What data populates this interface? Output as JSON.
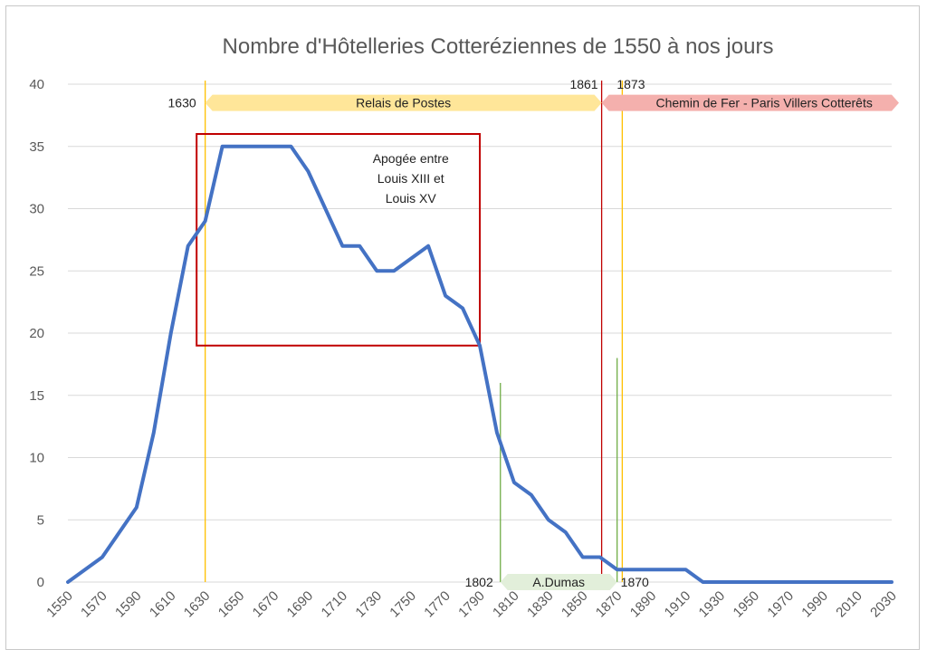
{
  "chart_data": {
    "type": "line",
    "title": "Nombre d'Hôtelleries Cotteréziennes de 1550 à nos jours",
    "xlabel": "",
    "ylabel": "",
    "xlim": [
      1550,
      2030
    ],
    "ylim": [
      0,
      40
    ],
    "grid": true,
    "x_ticks": [
      "1550",
      "1570",
      "1590",
      "1610",
      "1630",
      "1650",
      "1670",
      "1690",
      "1710",
      "1730",
      "1750",
      "1770",
      "1790",
      "1810",
      "1830",
      "1850",
      "1870",
      "1890",
      "1910",
      "1930",
      "1950",
      "1970",
      "1990",
      "2010",
      "2030"
    ],
    "y_ticks": [
      "0",
      "5",
      "10",
      "15",
      "20",
      "25",
      "30",
      "35",
      "40"
    ],
    "series": [
      {
        "color": "#4472C4",
        "x": [
          1550,
          1560,
          1570,
          1580,
          1590,
          1600,
          1610,
          1620,
          1630,
          1640,
          1650,
          1660,
          1670,
          1680,
          1690,
          1700,
          1710,
          1720,
          1730,
          1740,
          1750,
          1760,
          1770,
          1780,
          1790,
          1800,
          1810,
          1820,
          1830,
          1840,
          1850,
          1860,
          1870,
          1880,
          1890,
          1900,
          1910,
          1920,
          1930,
          1940,
          1950,
          1960,
          1970,
          1980,
          1990,
          2000,
          2010,
          2020,
          2030
        ],
        "values": [
          0,
          1,
          2,
          4,
          6,
          12,
          20,
          27,
          29,
          35,
          35,
          35,
          35,
          35,
          33,
          30,
          27,
          27,
          25,
          25,
          26,
          27,
          23,
          22,
          19,
          12,
          8,
          7,
          5,
          4,
          2,
          2,
          1,
          1,
          1,
          1,
          1,
          0,
          0,
          0,
          0,
          0,
          0,
          0,
          0,
          0,
          0,
          0,
          0
        ]
      }
    ],
    "annotations": {
      "relais": {
        "label": "Relais de Postes",
        "start_label": "1630",
        "from": 1630,
        "to": 1861,
        "color": "#FFE699"
      },
      "chemin": {
        "label": "Chemin de Fer - Paris Villers Cotterêts",
        "label_1861": "1861",
        "label_1873": "1873",
        "from": 1861,
        "to": 2030,
        "color": "#F4B0AD"
      },
      "dumas": {
        "label": "A.Dumas",
        "label_start": "1802",
        "label_end": "1870",
        "from": 1802,
        "to": 1870,
        "color": "#E2EFDA"
      },
      "apogee": {
        "lines": [
          "Apogée entre",
          "Louis XIII et",
          "Louis XV"
        ],
        "x_from": 1625,
        "x_to": 1790,
        "y_from": 19,
        "y_to": 36,
        "color": "#C00000"
      },
      "vlines": [
        {
          "x": 1630,
          "y_to": 40,
          "color": "#FFC000"
        },
        {
          "x": 1861,
          "y_to": 40,
          "color": "#C00000"
        },
        {
          "x": 1873,
          "y_to": 40,
          "color": "#FFC000"
        },
        {
          "x": 1802,
          "y_to": 16,
          "color": "#70AD47"
        },
        {
          "x": 1870,
          "y_to": 18,
          "color": "#70AD47"
        }
      ]
    }
  }
}
